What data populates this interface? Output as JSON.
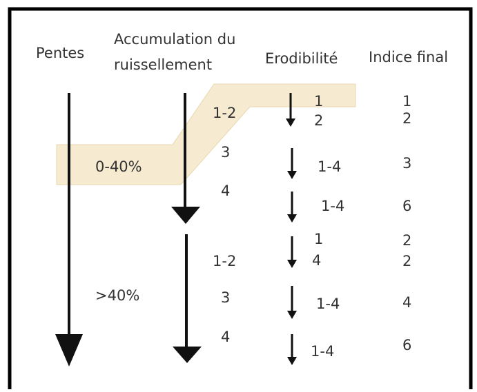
{
  "headers": {
    "slopes": "Pentes",
    "accumulation_line1": "Accumulation du",
    "accumulation_line2": "ruissellement",
    "erodibility": "Erodibilité",
    "final_index": "Indice final"
  },
  "slopes": [
    {
      "label": "0-40%",
      "rows": [
        {
          "accumulation": "1-2",
          "erodibility": [
            "1",
            "2"
          ],
          "index": [
            "1",
            "2"
          ]
        },
        {
          "accumulation": "3",
          "erodibility": [
            "1-4"
          ],
          "index": [
            "3"
          ]
        },
        {
          "accumulation": "4",
          "erodibility": [
            "1-4"
          ],
          "index": [
            "6"
          ]
        }
      ]
    },
    {
      "label": ">40%",
      "rows": [
        {
          "accumulation": "1-2",
          "erodibility": [
            "1",
            "4"
          ],
          "index": [
            "2",
            "2"
          ]
        },
        {
          "accumulation": "3",
          "erodibility": [
            "1-4"
          ],
          "index": [
            "4"
          ]
        },
        {
          "accumulation": "4",
          "erodibility": [
            "1-4"
          ],
          "index": [
            "6"
          ]
        }
      ]
    }
  ]
}
